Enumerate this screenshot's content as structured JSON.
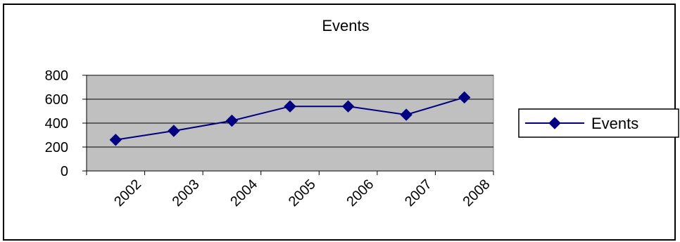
{
  "chart_data": {
    "type": "line",
    "title": "Events",
    "categories": [
      "2002",
      "2003",
      "2004",
      "2005",
      "2006",
      "2007",
      "2008"
    ],
    "series": [
      {
        "name": "Events",
        "values": [
          260,
          335,
          420,
          540,
          540,
          470,
          615
        ]
      }
    ],
    "y_ticks": [
      "0",
      "200",
      "400",
      "600",
      "800"
    ],
    "ylim": [
      0,
      800
    ],
    "grid": true,
    "legend": "right",
    "colors": {
      "series": "#000080",
      "plot_background": "#c0c0c0",
      "gridline": "#000000",
      "border": "#000000"
    },
    "marker": "diamond"
  }
}
